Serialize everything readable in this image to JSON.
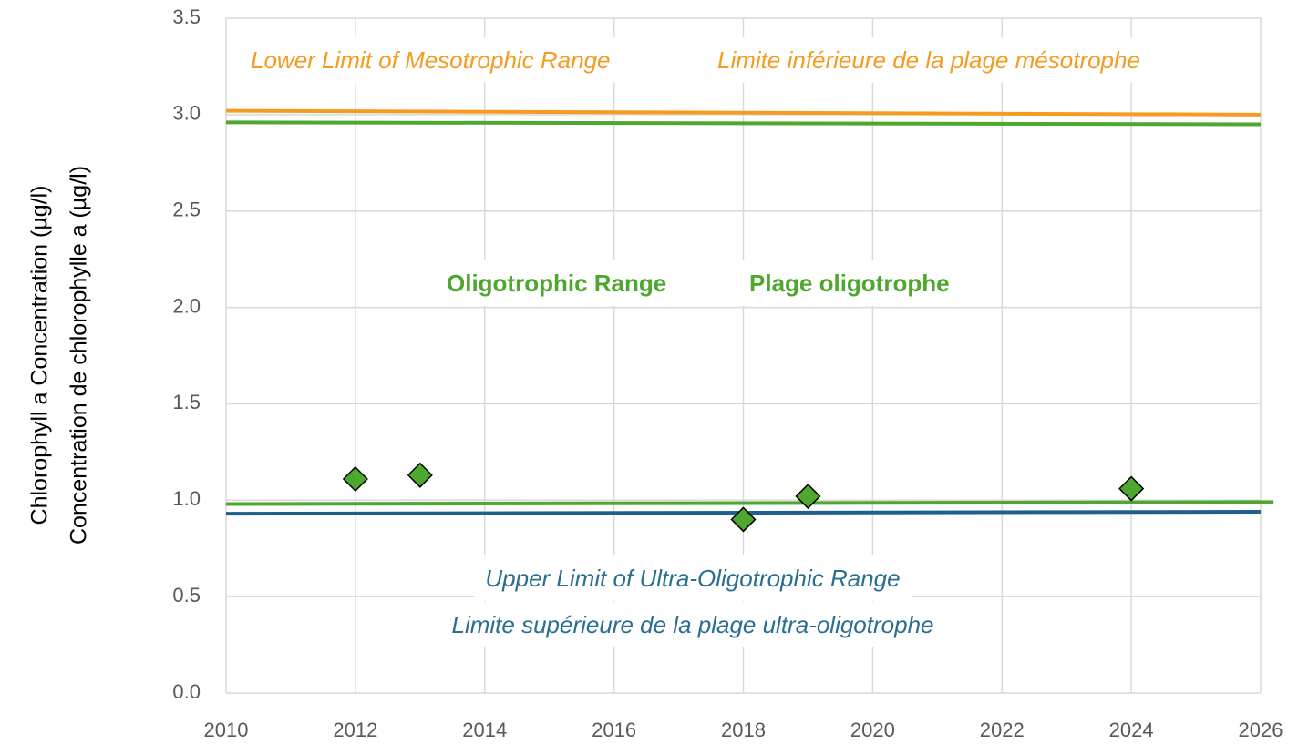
{
  "chart_data": {
    "type": "scatter",
    "y_label": [
      "Chlorophyll a Concentration (µg/l)",
      "Concentration de chlorophylle a  (µg/l)"
    ],
    "x": [
      2012,
      2013,
      2018,
      2019,
      2024
    ],
    "values": [
      1.11,
      1.13,
      0.9,
      1.02,
      1.06
    ],
    "marker_color": "#4ea72e",
    "reference_lines": [
      {
        "color": "#f59b20",
        "x": [
          2010,
          2026
        ],
        "values": [
          3.02,
          3.0
        ]
      },
      {
        "color": "#4ea72e",
        "x": [
          2010,
          2026
        ],
        "values": [
          2.96,
          2.95
        ]
      },
      {
        "color": "#4ea72e",
        "x": [
          2010,
          2026.2
        ],
        "values": [
          0.98,
          0.99
        ]
      },
      {
        "color": "#1f5f8b",
        "x": [
          2010,
          2026
        ],
        "values": [
          0.93,
          0.94
        ]
      }
    ],
    "annotations": [
      {
        "text": "Lower Limit of Mesotrophic Range",
        "color": "#f59b20"
      },
      {
        "text": "Limite inférieure de la plage mésotrophe",
        "color": "#f59b20"
      },
      {
        "text": "Oligotrophic Range",
        "color": "#4ea72e"
      },
      {
        "text": "Plage oligotrophe",
        "color": "#4ea72e"
      },
      {
        "text": "Upper Limit of Ultra-Oligotrophic Range",
        "color": "#2a6e90"
      },
      {
        "text": "Limite supérieure de la plage ultra-oligotrophe",
        "color": "#2a6e90"
      }
    ],
    "xlim": [
      2010,
      2026
    ],
    "xticks": [
      2010,
      2012,
      2014,
      2016,
      2018,
      2020,
      2022,
      2024,
      2026
    ],
    "ylim": [
      0,
      3.5
    ],
    "yticks": [
      {
        "value": 0,
        "label": "0.0"
      },
      0.5,
      {
        "value": 1,
        "label": "1.0"
      },
      1.5,
      {
        "value": 2,
        "label": "2.0"
      },
      2.5,
      {
        "value": 3,
        "label": "3.0"
      },
      3.5
    ],
    "grid": true
  }
}
